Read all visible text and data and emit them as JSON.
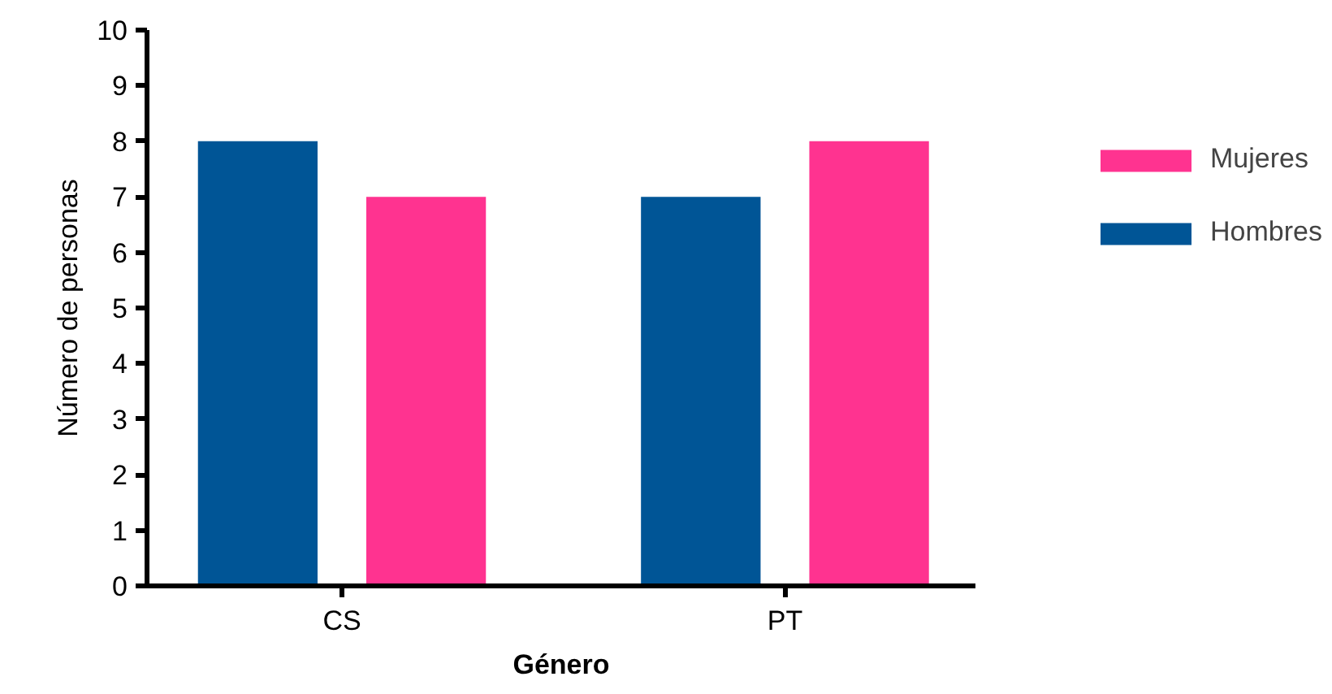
{
  "chart_data": {
    "type": "bar",
    "xlabel": "Género",
    "ylabel": "Número de personas",
    "categories": [
      "CS",
      "PT"
    ],
    "series": [
      {
        "name": "Hombres",
        "color": "#005596",
        "values": [
          8,
          7
        ]
      },
      {
        "name": "Mujeres",
        "color": "#ff3390",
        "values": [
          7,
          8
        ]
      }
    ],
    "ylim": [
      0,
      10
    ],
    "yticks": [
      0,
      1,
      2,
      3,
      4,
      5,
      6,
      7,
      8,
      9,
      10
    ],
    "grid": false,
    "legend": "top right"
  }
}
